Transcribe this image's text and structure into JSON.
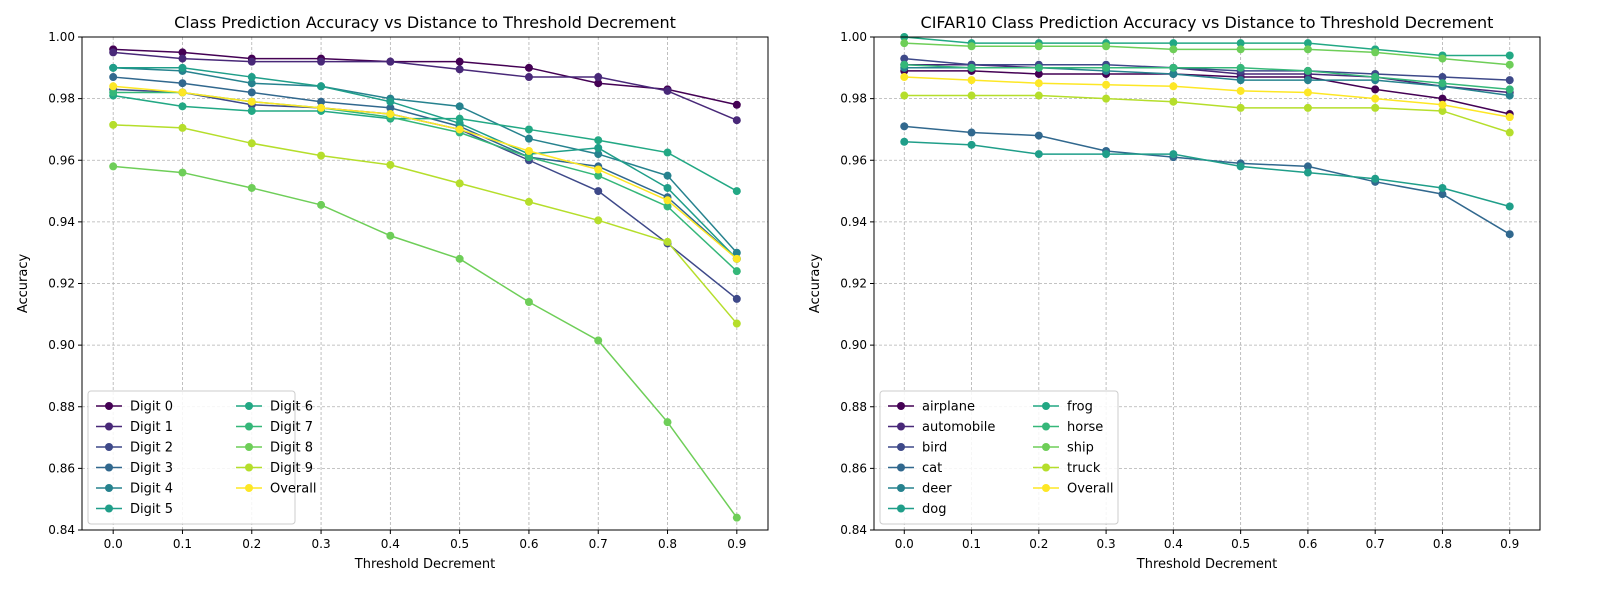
{
  "chart_data": [
    {
      "type": "line",
      "title": "Class Prediction Accuracy vs Distance to Threshold Decrement",
      "xlabel": "Threshold Decrement",
      "ylabel": "Accuracy",
      "x": [
        0.0,
        0.1,
        0.2,
        0.3,
        0.4,
        0.5,
        0.6,
        0.7,
        0.8,
        0.9
      ],
      "xticks": [
        "0.0",
        "0.1",
        "0.2",
        "0.3",
        "0.4",
        "0.5",
        "0.6",
        "0.7",
        "0.8",
        "0.9"
      ],
      "ylim": [
        0.84,
        1.0
      ],
      "yticks": [
        "0.84",
        "0.86",
        "0.88",
        "0.90",
        "0.92",
        "0.94",
        "0.96",
        "0.98",
        "1.00"
      ],
      "grid": true,
      "legend_position": "lower-left",
      "legend_columns": 2,
      "series": [
        {
          "name": "Digit 0",
          "color": "#440154",
          "values": [
            0.996,
            0.995,
            0.993,
            0.993,
            0.992,
            0.992,
            0.99,
            0.985,
            0.983,
            0.978
          ]
        },
        {
          "name": "Digit 1",
          "color": "#482878",
          "values": [
            0.995,
            0.993,
            0.992,
            0.992,
            0.992,
            0.9895,
            0.987,
            0.987,
            0.9825,
            0.973
          ]
        },
        {
          "name": "Digit 2",
          "color": "#3e4989",
          "values": [
            0.983,
            0.982,
            0.978,
            0.977,
            0.975,
            0.97,
            0.96,
            0.95,
            0.933,
            0.915
          ]
        },
        {
          "name": "Digit 3",
          "color": "#31688e",
          "values": [
            0.987,
            0.985,
            0.982,
            0.979,
            0.977,
            0.971,
            0.961,
            0.958,
            0.948,
            0.928
          ]
        },
        {
          "name": "Digit 4",
          "color": "#26828e",
          "values": [
            0.99,
            0.989,
            0.985,
            0.984,
            0.98,
            0.9775,
            0.967,
            0.962,
            0.955,
            0.93
          ]
        },
        {
          "name": "Digit 5",
          "color": "#1f9e89",
          "values": [
            0.99,
            0.99,
            0.987,
            0.984,
            0.979,
            0.972,
            0.962,
            0.964,
            0.951,
            0.928
          ]
        },
        {
          "name": "Digit 6",
          "color": "#22a884",
          "values": [
            0.981,
            0.9775,
            0.976,
            0.976,
            0.9735,
            0.9735,
            0.97,
            0.9665,
            0.9625,
            0.95
          ]
        },
        {
          "name": "Digit 7",
          "color": "#35b779",
          "values": [
            0.982,
            0.982,
            0.979,
            0.977,
            0.974,
            0.969,
            0.961,
            0.955,
            0.945,
            0.924
          ]
        },
        {
          "name": "Digit 8",
          "color": "#6ece58",
          "values": [
            0.958,
            0.956,
            0.951,
            0.9455,
            0.9355,
            0.928,
            0.914,
            0.9015,
            0.875,
            0.844
          ]
        },
        {
          "name": "Digit 9",
          "color": "#b5de2b",
          "values": [
            0.9715,
            0.9705,
            0.9655,
            0.9615,
            0.9585,
            0.9525,
            0.9465,
            0.9405,
            0.9335,
            0.907
          ]
        },
        {
          "name": "Overall",
          "color": "#fde725",
          "values": [
            0.984,
            0.982,
            0.979,
            0.977,
            0.975,
            0.97,
            0.963,
            0.957,
            0.947,
            0.928
          ]
        }
      ]
    },
    {
      "type": "line",
      "title": "CIFAR10 Class Prediction Accuracy vs Distance to Threshold Decrement",
      "xlabel": "Threshold Decrement",
      "ylabel": "Accuracy",
      "x": [
        0.0,
        0.1,
        0.2,
        0.3,
        0.4,
        0.5,
        0.6,
        0.7,
        0.8,
        0.9
      ],
      "xticks": [
        "0.0",
        "0.1",
        "0.2",
        "0.3",
        "0.4",
        "0.5",
        "0.6",
        "0.7",
        "0.8",
        "0.9"
      ],
      "ylim": [
        0.84,
        1.0
      ],
      "yticks": [
        "0.84",
        "0.86",
        "0.88",
        "0.90",
        "0.92",
        "0.94",
        "0.96",
        "0.98",
        "1.00"
      ],
      "grid": true,
      "legend_position": "lower-left",
      "legend_columns": 2,
      "series": [
        {
          "name": "airplane",
          "color": "#440154",
          "values": [
            0.989,
            0.989,
            0.988,
            0.988,
            0.988,
            0.987,
            0.987,
            0.983,
            0.98,
            0.975
          ]
        },
        {
          "name": "automobile",
          "color": "#482878",
          "values": [
            0.991,
            0.991,
            0.99,
            0.99,
            0.99,
            0.988,
            0.988,
            0.987,
            0.984,
            0.982
          ]
        },
        {
          "name": "bird",
          "color": "#3e4989",
          "values": [
            0.993,
            0.991,
            0.991,
            0.991,
            0.99,
            0.989,
            0.989,
            0.988,
            0.987,
            0.986
          ]
        },
        {
          "name": "cat",
          "color": "#31688e",
          "values": [
            0.971,
            0.969,
            0.968,
            0.963,
            0.961,
            0.959,
            0.958,
            0.953,
            0.949,
            0.936
          ]
        },
        {
          "name": "deer",
          "color": "#26828e",
          "values": [
            0.99,
            0.99,
            0.99,
            0.989,
            0.988,
            0.986,
            0.986,
            0.986,
            0.984,
            0.981
          ]
        },
        {
          "name": "dog",
          "color": "#1f9e89",
          "values": [
            0.966,
            0.965,
            0.962,
            0.962,
            0.962,
            0.958,
            0.956,
            0.954,
            0.951,
            0.945
          ]
        },
        {
          "name": "frog",
          "color": "#22a884",
          "values": [
            1.0,
            0.998,
            0.998,
            0.998,
            0.998,
            0.998,
            0.998,
            0.996,
            0.994,
            0.994
          ]
        },
        {
          "name": "horse",
          "color": "#35b779",
          "values": [
            0.991,
            0.99,
            0.99,
            0.99,
            0.99,
            0.99,
            0.989,
            0.987,
            0.985,
            0.983
          ]
        },
        {
          "name": "ship",
          "color": "#6ece58",
          "values": [
            0.998,
            0.997,
            0.997,
            0.997,
            0.996,
            0.996,
            0.996,
            0.995,
            0.993,
            0.991
          ]
        },
        {
          "name": "truck",
          "color": "#b5de2b",
          "values": [
            0.981,
            0.981,
            0.981,
            0.98,
            0.979,
            0.977,
            0.977,
            0.977,
            0.976,
            0.969
          ]
        },
        {
          "name": "Overall",
          "color": "#fde725",
          "values": [
            0.987,
            0.986,
            0.985,
            0.9845,
            0.984,
            0.9825,
            0.982,
            0.98,
            0.978,
            0.974
          ]
        }
      ]
    }
  ]
}
